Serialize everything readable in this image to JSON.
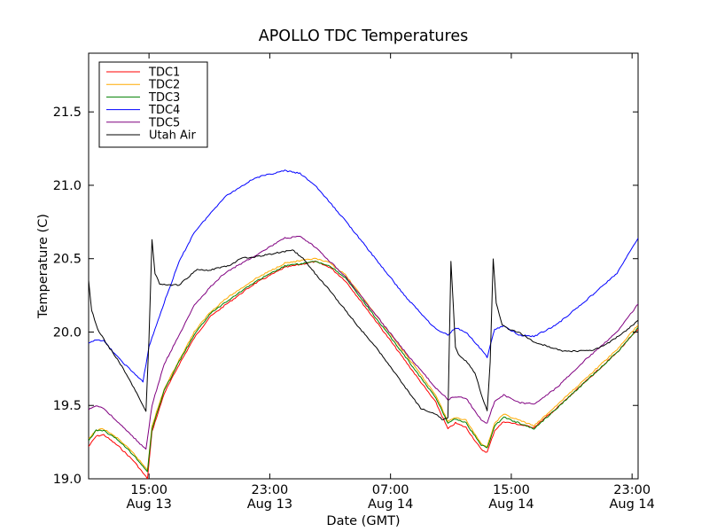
{
  "chart_data": {
    "type": "line",
    "title": "APOLLO TDC Temperatures",
    "xlabel": "Date (GMT)",
    "ylabel": "Temperature (C)",
    "ylim": [
      19.0,
      21.9
    ],
    "xlim_hours": [
      11.0,
      47.4
    ],
    "x_unit": "hours since Aug 13 00:00 GMT",
    "yticks": [
      {
        "value": 19.0,
        "label": "19.0"
      },
      {
        "value": 19.5,
        "label": "19.5"
      },
      {
        "value": 20.0,
        "label": "20.0"
      },
      {
        "value": 20.5,
        "label": "20.5"
      },
      {
        "value": 21.0,
        "label": "21.0"
      },
      {
        "value": 21.5,
        "label": "21.5"
      }
    ],
    "xticks": [
      {
        "value": 15,
        "time": "15:00",
        "date": "Aug 13"
      },
      {
        "value": 23,
        "time": "23:00",
        "date": "Aug 13"
      },
      {
        "value": 31,
        "time": "07:00",
        "date": "Aug 14"
      },
      {
        "value": 39,
        "time": "15:00",
        "date": "Aug 14"
      },
      {
        "value": 47,
        "time": "23:00",
        "date": "Aug 14"
      }
    ],
    "legend_position": "top-left",
    "series": [
      {
        "name": "TDC1",
        "color": "#ff0000",
        "x": [
          11.0,
          11.5,
          12,
          13,
          14,
          14.9,
          15.2,
          16,
          17,
          18,
          19,
          20,
          22,
          24,
          26,
          27,
          28,
          30,
          32,
          34,
          34.8,
          35.3,
          36,
          37,
          37.4,
          37.9,
          38.5,
          39.5,
          40.5,
          42,
          44,
          46,
          47.4
        ],
        "y": [
          19.22,
          19.29,
          19.3,
          19.22,
          19.12,
          19.0,
          19.32,
          19.58,
          19.78,
          19.96,
          20.1,
          20.18,
          20.33,
          20.44,
          20.48,
          20.44,
          20.35,
          20.08,
          19.8,
          19.52,
          19.34,
          19.38,
          19.35,
          19.2,
          19.18,
          19.33,
          19.39,
          19.37,
          19.35,
          19.48,
          19.67,
          19.86,
          20.02
        ]
      },
      {
        "name": "TDC2",
        "color": "#ffaa00",
        "x": [
          11.0,
          11.5,
          12,
          13,
          14,
          14.9,
          15.2,
          16,
          17,
          18,
          19,
          20,
          22,
          24,
          26,
          27,
          28,
          30,
          32,
          34,
          34.8,
          35.3,
          36,
          37,
          37.4,
          37.9,
          38.5,
          39.5,
          40.5,
          42,
          44,
          46,
          47.4
        ],
        "y": [
          19.27,
          19.33,
          19.34,
          19.27,
          19.17,
          19.06,
          19.36,
          19.61,
          19.81,
          20.0,
          20.13,
          20.22,
          20.36,
          20.47,
          20.5,
          20.47,
          20.39,
          20.12,
          19.85,
          19.57,
          19.39,
          19.42,
          19.4,
          19.24,
          19.22,
          19.38,
          19.44,
          19.4,
          19.36,
          19.5,
          19.69,
          19.88,
          20.05
        ]
      },
      {
        "name": "TDC3",
        "color": "#008000",
        "x": [
          11.0,
          11.5,
          12,
          13,
          14,
          14.9,
          15.2,
          16,
          17,
          18,
          19,
          20,
          22,
          24,
          26,
          27,
          28,
          30,
          32,
          34,
          34.8,
          35.3,
          36,
          37,
          37.4,
          37.9,
          38.5,
          39.5,
          40.5,
          42,
          44,
          46,
          47.4
        ],
        "y": [
          19.26,
          19.33,
          19.33,
          19.26,
          19.16,
          19.05,
          19.34,
          19.6,
          19.8,
          19.98,
          20.12,
          20.2,
          20.34,
          20.45,
          20.48,
          20.45,
          20.37,
          20.1,
          19.83,
          19.55,
          19.38,
          19.41,
          19.38,
          19.23,
          19.21,
          19.36,
          19.42,
          19.38,
          19.34,
          19.48,
          19.67,
          19.86,
          20.03
        ]
      },
      {
        "name": "TDC4",
        "color": "#0000ff",
        "x": [
          11.0,
          11.5,
          12,
          13,
          14.6,
          15.0,
          16,
          17,
          18,
          19,
          20,
          22,
          24,
          25,
          26,
          28,
          30,
          32,
          34,
          34.8,
          35.3,
          36,
          37,
          37.4,
          37.9,
          38.5,
          39.5,
          40.5,
          42,
          44,
          46,
          47.4
        ],
        "y": [
          19.92,
          19.95,
          19.94,
          19.82,
          19.66,
          19.9,
          20.2,
          20.48,
          20.68,
          20.8,
          20.92,
          21.05,
          21.1,
          21.08,
          21.0,
          20.76,
          20.5,
          20.24,
          20.02,
          19.98,
          20.03,
          20.0,
          19.88,
          19.83,
          20.02,
          20.04,
          19.98,
          19.97,
          20.05,
          20.22,
          20.4,
          20.64
        ]
      },
      {
        "name": "TDC5",
        "color": "#800080",
        "x": [
          11.0,
          11.5,
          12,
          13,
          14.8,
          15.2,
          16,
          17,
          18,
          19,
          20,
          22,
          24,
          25,
          26,
          28,
          30,
          32,
          34,
          34.8,
          35.3,
          36,
          37,
          37.4,
          37.9,
          38.5,
          39.5,
          40.5,
          42,
          44,
          46,
          47.4
        ],
        "y": [
          19.47,
          19.5,
          19.48,
          19.38,
          19.2,
          19.5,
          19.78,
          19.98,
          20.18,
          20.3,
          20.4,
          20.52,
          20.64,
          20.65,
          20.58,
          20.38,
          20.12,
          19.86,
          19.62,
          19.54,
          19.56,
          19.55,
          19.4,
          19.38,
          19.53,
          19.57,
          19.52,
          19.51,
          19.62,
          19.82,
          20.0,
          20.19
        ]
      },
      {
        "name": "Utah Air",
        "color": "#000000",
        "x": [
          11.0,
          11.2,
          11.6,
          12.2,
          13,
          14,
          14.8,
          15.0,
          15.2,
          15.4,
          15.7,
          16.2,
          17,
          18.2,
          19,
          20.5,
          21,
          22.5,
          23.5,
          24.5,
          25.2,
          26,
          27,
          28,
          29,
          30,
          31,
          32,
          33,
          34,
          34.5,
          34.8,
          35.0,
          35.15,
          35.3,
          35.5,
          35.8,
          36.2,
          36.6,
          37.0,
          37.4,
          37.6,
          37.8,
          38.0,
          38.4,
          38.8,
          39.5,
          40.5,
          41.5,
          42.5,
          43.5,
          44.5,
          45.5,
          46.5,
          47.4
        ],
        "y": [
          20.35,
          20.15,
          20.02,
          19.92,
          19.8,
          19.62,
          19.46,
          19.95,
          20.63,
          20.4,
          20.33,
          20.32,
          20.32,
          20.43,
          20.42,
          20.46,
          20.5,
          20.52,
          20.54,
          20.56,
          20.5,
          20.4,
          20.28,
          20.15,
          20.02,
          19.9,
          19.76,
          19.62,
          19.48,
          19.44,
          19.4,
          19.42,
          20.48,
          20.2,
          19.9,
          19.85,
          19.82,
          19.78,
          19.72,
          19.58,
          19.46,
          19.8,
          20.5,
          20.2,
          20.05,
          20.02,
          20.0,
          19.93,
          19.9,
          19.87,
          19.87,
          19.88,
          19.93,
          20.0,
          20.08
        ]
      }
    ]
  }
}
